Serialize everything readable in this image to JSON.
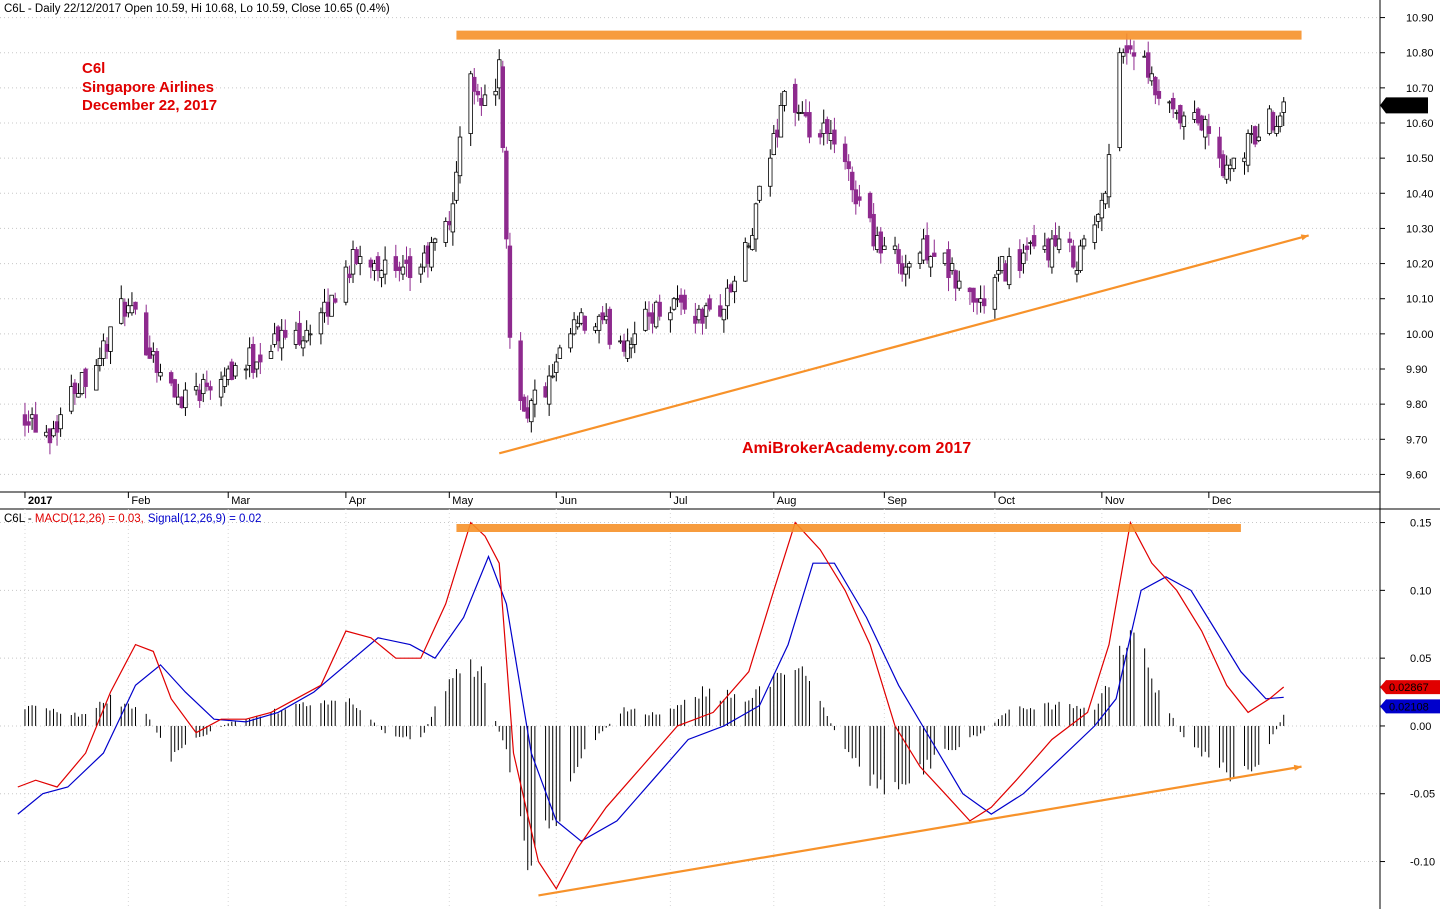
{
  "colors": {
    "up": "#ffffff",
    "down": "#8e2a8e",
    "outline": "#000000",
    "macd": "#e00000",
    "signal": "#0000cc",
    "annotation": "#f7922a",
    "label_red": "#e00000",
    "axis": "#000000"
  },
  "header": {
    "price_line": "C6L - Daily 22/12/2017 Open 10.59, Hi 10.68, Lo 10.59, Close 10.65 (0.4%)",
    "macd_prefix": "C6L - ",
    "macd_label": "MACD(12,26) = 0.03,",
    "signal_label": "Signal(12,26,9) = 0.02"
  },
  "annotations": {
    "title_lines": [
      "C6l",
      "Singapore Airlines",
      "December 22, 2017"
    ],
    "watermark": "AmiBrokerAcademy.com  2017"
  },
  "chart_data": [
    {
      "type": "candlestick",
      "name": "Price",
      "ylim": [
        9.55,
        10.95
      ],
      "ticks": [
        "9.60",
        "9.70",
        "9.80",
        "9.90",
        "10.00",
        "10.10",
        "10.20",
        "10.30",
        "10.40",
        "10.50",
        "10.60",
        "10.70",
        "10.80",
        "10.90"
      ],
      "x_labels": [
        "2017",
        "Feb",
        "Mar",
        "Apr",
        "May",
        "Jun",
        "Jul",
        "Aug",
        "Sep",
        "Oct",
        "Nov",
        "Dec"
      ],
      "last_value_label": "10.65",
      "close_path": [
        [
          "2017-01-03",
          9.78
        ],
        [
          "2017-01-10",
          9.72
        ],
        [
          "2017-01-17",
          9.85
        ],
        [
          "2017-01-24",
          9.94
        ],
        [
          "2017-01-31",
          10.08
        ],
        [
          "2017-02-07",
          9.96
        ],
        [
          "2017-02-14",
          9.82
        ],
        [
          "2017-02-21",
          9.85
        ],
        [
          "2017-02-28",
          9.9
        ],
        [
          "2017-03-07",
          9.92
        ],
        [
          "2017-03-14",
          9.98
        ],
        [
          "2017-03-21",
          10.0
        ],
        [
          "2017-03-28",
          10.05
        ],
        [
          "2017-04-04",
          10.2
        ],
        [
          "2017-04-11",
          10.22
        ],
        [
          "2017-04-18",
          10.15
        ],
        [
          "2017-04-25",
          10.2
        ],
        [
          "2017-05-02",
          10.32
        ],
        [
          "2017-05-08",
          10.75
        ],
        [
          "2017-05-12",
          10.65
        ],
        [
          "2017-05-16",
          10.75
        ],
        [
          "2017-05-19",
          10.0
        ],
        [
          "2017-05-23",
          9.78
        ],
        [
          "2017-05-30",
          9.85
        ],
        [
          "2017-06-06",
          10.02
        ],
        [
          "2017-06-13",
          10.02
        ],
        [
          "2017-06-20",
          9.98
        ],
        [
          "2017-06-27",
          10.05
        ],
        [
          "2017-07-04",
          10.1
        ],
        [
          "2017-07-11",
          10.05
        ],
        [
          "2017-07-18",
          10.08
        ],
        [
          "2017-07-25",
          10.25
        ],
        [
          "2017-08-01",
          10.55
        ],
        [
          "2017-08-04",
          10.7
        ],
        [
          "2017-08-10",
          10.58
        ],
        [
          "2017-08-17",
          10.55
        ],
        [
          "2017-08-24",
          10.4
        ],
        [
          "2017-08-31",
          10.25
        ],
        [
          "2017-09-07",
          10.2
        ],
        [
          "2017-09-14",
          10.25
        ],
        [
          "2017-09-21",
          10.15
        ],
        [
          "2017-09-28",
          10.08
        ],
        [
          "2017-10-04",
          10.18
        ],
        [
          "2017-10-11",
          10.22
        ],
        [
          "2017-10-18",
          10.25
        ],
        [
          "2017-10-25",
          10.22
        ],
        [
          "2017-11-01",
          10.35
        ],
        [
          "2017-11-06",
          10.8
        ],
        [
          "2017-11-10",
          10.82
        ],
        [
          "2017-11-15",
          10.7
        ],
        [
          "2017-11-22",
          10.6
        ],
        [
          "2017-11-29",
          10.6
        ],
        [
          "2017-12-06",
          10.45
        ],
        [
          "2017-12-13",
          10.55
        ],
        [
          "2017-12-22",
          10.65
        ]
      ],
      "resistance_line": {
        "from": [
          "2017-05-04",
          10.85
        ],
        "to": [
          "2017-12-27",
          10.85
        ]
      },
      "support_line": {
        "from": [
          "2017-05-16",
          9.66
        ],
        "to": [
          "2017-12-29",
          10.28
        ]
      }
    },
    {
      "type": "line",
      "name": "MACD",
      "ylim": [
        -0.135,
        0.16
      ],
      "ticks": [
        "-0.10",
        "-0.05",
        "0.00",
        "0.05",
        "0.10",
        "0.15"
      ],
      "last_values": {
        "macd": "0.02867",
        "signal": "0.02108"
      },
      "series": [
        {
          "name": "MACD(12,26)",
          "points": [
            [
              "2017-01-01",
              -0.045
            ],
            [
              "2017-01-06",
              -0.04
            ],
            [
              "2017-01-12",
              -0.045
            ],
            [
              "2017-01-20",
              -0.02
            ],
            [
              "2017-01-27",
              0.025
            ],
            [
              "2017-02-03",
              0.06
            ],
            [
              "2017-02-08",
              0.055
            ],
            [
              "2017-02-13",
              0.02
            ],
            [
              "2017-02-20",
              -0.005
            ],
            [
              "2017-02-27",
              0.005
            ],
            [
              "2017-03-06",
              0.005
            ],
            [
              "2017-03-13",
              0.01
            ],
            [
              "2017-03-20",
              0.02
            ],
            [
              "2017-03-27",
              0.03
            ],
            [
              "2017-04-03",
              0.07
            ],
            [
              "2017-04-10",
              0.065
            ],
            [
              "2017-04-17",
              0.05
            ],
            [
              "2017-04-24",
              0.05
            ],
            [
              "2017-05-01",
              0.09
            ],
            [
              "2017-05-08",
              0.15
            ],
            [
              "2017-05-12",
              0.14
            ],
            [
              "2017-05-16",
              0.12
            ],
            [
              "2017-05-20",
              -0.02
            ],
            [
              "2017-05-27",
              -0.1
            ],
            [
              "2017-06-01",
              -0.12
            ],
            [
              "2017-06-07",
              -0.09
            ],
            [
              "2017-06-15",
              -0.06
            ],
            [
              "2017-06-25",
              -0.03
            ],
            [
              "2017-07-05",
              0.0
            ],
            [
              "2017-07-15",
              0.01
            ],
            [
              "2017-07-25",
              0.04
            ],
            [
              "2017-08-01",
              0.1
            ],
            [
              "2017-08-07",
              0.15
            ],
            [
              "2017-08-14",
              0.13
            ],
            [
              "2017-08-21",
              0.1
            ],
            [
              "2017-08-28",
              0.06
            ],
            [
              "2017-09-04",
              0.0
            ],
            [
              "2017-09-11",
              -0.03
            ],
            [
              "2017-09-18",
              -0.05
            ],
            [
              "2017-09-25",
              -0.07
            ],
            [
              "2017-10-01",
              -0.06
            ],
            [
              "2017-10-08",
              -0.04
            ],
            [
              "2017-10-18",
              -0.01
            ],
            [
              "2017-10-28",
              0.01
            ],
            [
              "2017-11-03",
              0.06
            ],
            [
              "2017-11-09",
              0.15
            ],
            [
              "2017-11-15",
              0.12
            ],
            [
              "2017-11-22",
              0.1
            ],
            [
              "2017-11-29",
              0.07
            ],
            [
              "2017-12-06",
              0.03
            ],
            [
              "2017-12-12",
              0.01
            ],
            [
              "2017-12-18",
              0.02
            ],
            [
              "2017-12-22",
              0.0287
            ]
          ]
        },
        {
          "name": "Signal(12,26,9)",
          "points": [
            [
              "2017-01-01",
              -0.065
            ],
            [
              "2017-01-08",
              -0.05
            ],
            [
              "2017-01-15",
              -0.045
            ],
            [
              "2017-01-25",
              -0.02
            ],
            [
              "2017-02-03",
              0.03
            ],
            [
              "2017-02-10",
              0.045
            ],
            [
              "2017-02-17",
              0.025
            ],
            [
              "2017-02-25",
              0.005
            ],
            [
              "2017-03-06",
              0.003
            ],
            [
              "2017-03-15",
              0.01
            ],
            [
              "2017-03-25",
              0.025
            ],
            [
              "2017-04-03",
              0.045
            ],
            [
              "2017-04-12",
              0.065
            ],
            [
              "2017-04-21",
              0.06
            ],
            [
              "2017-04-28",
              0.05
            ],
            [
              "2017-05-06",
              0.08
            ],
            [
              "2017-05-13",
              0.125
            ],
            [
              "2017-05-18",
              0.09
            ],
            [
              "2017-05-25",
              -0.02
            ],
            [
              "2017-06-01",
              -0.07
            ],
            [
              "2017-06-08",
              -0.085
            ],
            [
              "2017-06-18",
              -0.07
            ],
            [
              "2017-06-28",
              -0.04
            ],
            [
              "2017-07-08",
              -0.01
            ],
            [
              "2017-07-18",
              0.0
            ],
            [
              "2017-07-28",
              0.015
            ],
            [
              "2017-08-05",
              0.06
            ],
            [
              "2017-08-12",
              0.12
            ],
            [
              "2017-08-18",
              0.12
            ],
            [
              "2017-08-27",
              0.08
            ],
            [
              "2017-09-05",
              0.03
            ],
            [
              "2017-09-14",
              -0.01
            ],
            [
              "2017-09-23",
              -0.05
            ],
            [
              "2017-10-01",
              -0.065
            ],
            [
              "2017-10-10",
              -0.05
            ],
            [
              "2017-10-20",
              -0.025
            ],
            [
              "2017-10-30",
              0.0
            ],
            [
              "2017-11-05",
              0.02
            ],
            [
              "2017-11-12",
              0.1
            ],
            [
              "2017-11-19",
              0.11
            ],
            [
              "2017-11-26",
              0.1
            ],
            [
              "2017-12-03",
              0.07
            ],
            [
              "2017-12-10",
              0.04
            ],
            [
              "2017-12-17",
              0.02
            ],
            [
              "2017-12-22",
              0.0211
            ]
          ]
        },
        {
          "name": "Histogram",
          "type": "bar",
          "points": [
            [
              "2017-01-02",
              0.016
            ],
            [
              "2017-01-12",
              0.01
            ],
            [
              "2017-01-20",
              0.008
            ],
            [
              "2017-01-27",
              0.02
            ],
            [
              "2017-02-06",
              0.01
            ],
            [
              "2017-02-13",
              -0.025
            ],
            [
              "2017-02-20",
              -0.01
            ],
            [
              "2017-03-01",
              0.002
            ],
            [
              "2017-03-13",
              0.01
            ],
            [
              "2017-03-27",
              0.02
            ],
            [
              "2017-04-05",
              0.018
            ],
            [
              "2017-04-14",
              -0.005
            ],
            [
              "2017-04-24",
              -0.01
            ],
            [
              "2017-05-02",
              0.035
            ],
            [
              "2017-05-10",
              0.045
            ],
            [
              "2017-05-18",
              -0.02
            ],
            [
              "2017-05-24",
              -0.095
            ],
            [
              "2017-06-01",
              -0.07
            ],
            [
              "2017-06-08",
              -0.02
            ],
            [
              "2017-06-20",
              0.012
            ],
            [
              "2017-06-30",
              0.008
            ],
            [
              "2017-07-12",
              0.025
            ],
            [
              "2017-07-25",
              0.02
            ],
            [
              "2017-08-03",
              0.035
            ],
            [
              "2017-08-10",
              0.042
            ],
            [
              "2017-08-20",
              -0.015
            ],
            [
              "2017-08-28",
              -0.04
            ],
            [
              "2017-09-06",
              -0.045
            ],
            [
              "2017-09-18",
              -0.02
            ],
            [
              "2017-09-28",
              -0.005
            ],
            [
              "2017-10-08",
              0.015
            ],
            [
              "2017-10-20",
              0.015
            ],
            [
              "2017-10-30",
              0.012
            ],
            [
              "2017-11-06",
              0.05
            ],
            [
              "2017-11-10",
              0.068
            ],
            [
              "2017-11-16",
              0.03
            ],
            [
              "2017-11-24",
              -0.01
            ],
            [
              "2017-12-01",
              -0.025
            ],
            [
              "2017-12-08",
              -0.038
            ],
            [
              "2017-12-15",
              -0.025
            ],
            [
              "2017-12-22",
              0.007
            ]
          ]
        }
      ],
      "resistance_line": {
        "from": [
          "2017-05-04",
          0.146
        ],
        "to": [
          "2017-12-10",
          0.146
        ]
      },
      "support_line": {
        "from": [
          "2017-05-27",
          -0.125
        ],
        "to": [
          "2017-12-27",
          -0.03
        ]
      }
    }
  ]
}
